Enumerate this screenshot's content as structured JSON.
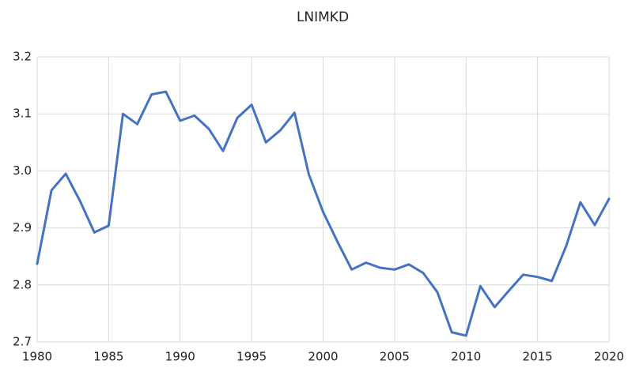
{
  "chart_data": {
    "type": "line",
    "title": "LNIMKD",
    "x": [
      1980,
      1981,
      1982,
      1983,
      1984,
      1985,
      1986,
      1987,
      1988,
      1989,
      1990,
      1991,
      1992,
      1993,
      1994,
      1995,
      1996,
      1997,
      1998,
      1999,
      2000,
      2001,
      2002,
      2003,
      2004,
      2005,
      2006,
      2007,
      2008,
      2009,
      2010,
      2011,
      2012,
      2013,
      2014,
      2015,
      2016,
      2017,
      2018,
      2019,
      2020
    ],
    "values": [
      2.837,
      2.966,
      2.995,
      2.947,
      2.892,
      2.904,
      3.1,
      3.082,
      3.134,
      3.139,
      3.088,
      3.097,
      3.074,
      3.035,
      3.093,
      3.116,
      3.05,
      3.071,
      3.102,
      2.994,
      2.928,
      2.876,
      2.827,
      2.839,
      2.83,
      2.827,
      2.836,
      2.821,
      2.787,
      2.717,
      2.711,
      2.798,
      2.761,
      2.79,
      2.818,
      2.814,
      2.807,
      2.868,
      2.945,
      2.905,
      2.951
    ],
    "color": "#4472c4",
    "xlim": [
      1980,
      2020
    ],
    "xticks": [
      1980,
      1985,
      1990,
      1995,
      2000,
      2005,
      2010,
      2015,
      2020
    ],
    "ylim": [
      2.7,
      3.2
    ],
    "yticks": [
      2.7,
      2.8,
      2.9,
      {
        "value": 3.0,
        "label": "3.0"
      },
      3.1,
      3.2
    ],
    "grid": true
  }
}
